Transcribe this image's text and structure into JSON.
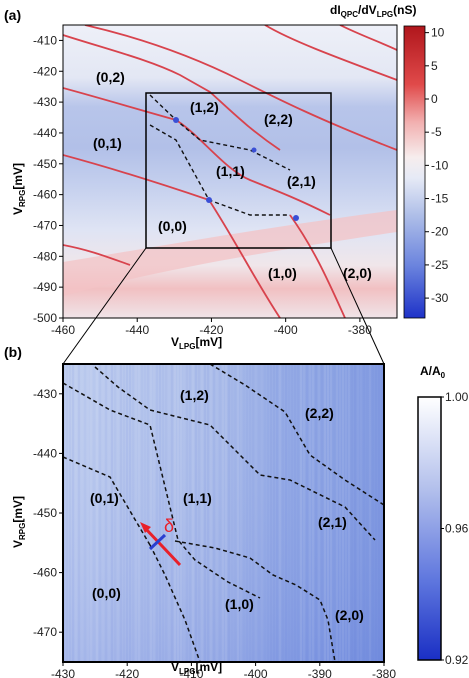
{
  "panel_a": {
    "label": "(a)",
    "xlabel_main": "V",
    "xlabel_sub": "LPG",
    "xlabel_unit": "[mV]",
    "ylabel_main": "V",
    "ylabel_sub": "RPG",
    "ylabel_unit": "[mV]",
    "colorbar_title": {
      "p1": "dI",
      "s1": "QPC",
      "p2": "/dV",
      "s2": "LPG",
      "p3": "(nS)"
    },
    "colorbar_ticks": [
      "10",
      "5",
      "0",
      "-5",
      "-10",
      "-15",
      "-20",
      "-25",
      "-30"
    ],
    "regions": [
      "(0,2)",
      "(0,1)",
      "(1,2)",
      "(2,2)",
      "(1,1)",
      "(2,1)",
      "(0,0)",
      "(1,0)",
      "(2,0)"
    ]
  },
  "panel_b": {
    "label": "(b)",
    "xlabel_main": "V",
    "xlabel_sub": "LPG",
    "xlabel_unit": "[mV]",
    "ylabel_main": "V",
    "ylabel_sub": "RPG",
    "ylabel_unit": "[mV]",
    "colorbar_title": {
      "p1": "A/A",
      "s1": "0"
    },
    "colorbar_ticks": [
      "1.00",
      "0.96",
      "0.92"
    ],
    "regions": [
      "(1,2)",
      "(2,2)",
      "(0,1)",
      "(1,1)",
      "(2,1)",
      "(0,0)",
      "(1,0)",
      "(2,0)"
    ],
    "annotation": "δ"
  },
  "colors": {
    "accent_red": "#e8202a",
    "deep_blue": "#2a3fd0",
    "light_blue": "#c9d4ef",
    "pink": "#f3c6c6"
  },
  "chart_data": [
    {
      "type": "heatmap",
      "panel": "(a)",
      "x_ticks": [
        -460,
        -440,
        -420,
        -400,
        -380
      ],
      "y_ticks": [
        -410,
        -420,
        -430,
        -440,
        -450,
        -460,
        -470,
        -480,
        -490,
        -500
      ],
      "xlim": [
        -460,
        -370
      ],
      "ylim": [
        -500,
        -405
      ],
      "colorbar_range": [
        -33,
        11
      ],
      "x_tick_labels": [
        "-460",
        "-440",
        "-420",
        "-400",
        "-380"
      ],
      "y_tick_labels": [
        "-410",
        "-420",
        "-430",
        "-440",
        "-450",
        "-460",
        "-470",
        "-480",
        "-490",
        "-500"
      ],
      "zoom_box": {
        "x": [
          -430,
          -380
        ],
        "y": [
          -475,
          -425
        ]
      }
    },
    {
      "type": "heatmap",
      "panel": "(b)",
      "x_ticks": [
        -430,
        -420,
        -410,
        -400,
        -390,
        -380
      ],
      "y_ticks": [
        -430,
        -440,
        -450,
        -460,
        -470
      ],
      "xlim": [
        -430,
        -380
      ],
      "ylim": [
        -475,
        -425
      ],
      "colorbar_range": [
        0.92,
        1.0
      ],
      "x_tick_labels": [
        "-430",
        "-420",
        "-410",
        "-400",
        "-390",
        "-380"
      ],
      "y_tick_labels": [
        "-430",
        "-440",
        "-450",
        "-460",
        "-470"
      ]
    }
  ]
}
